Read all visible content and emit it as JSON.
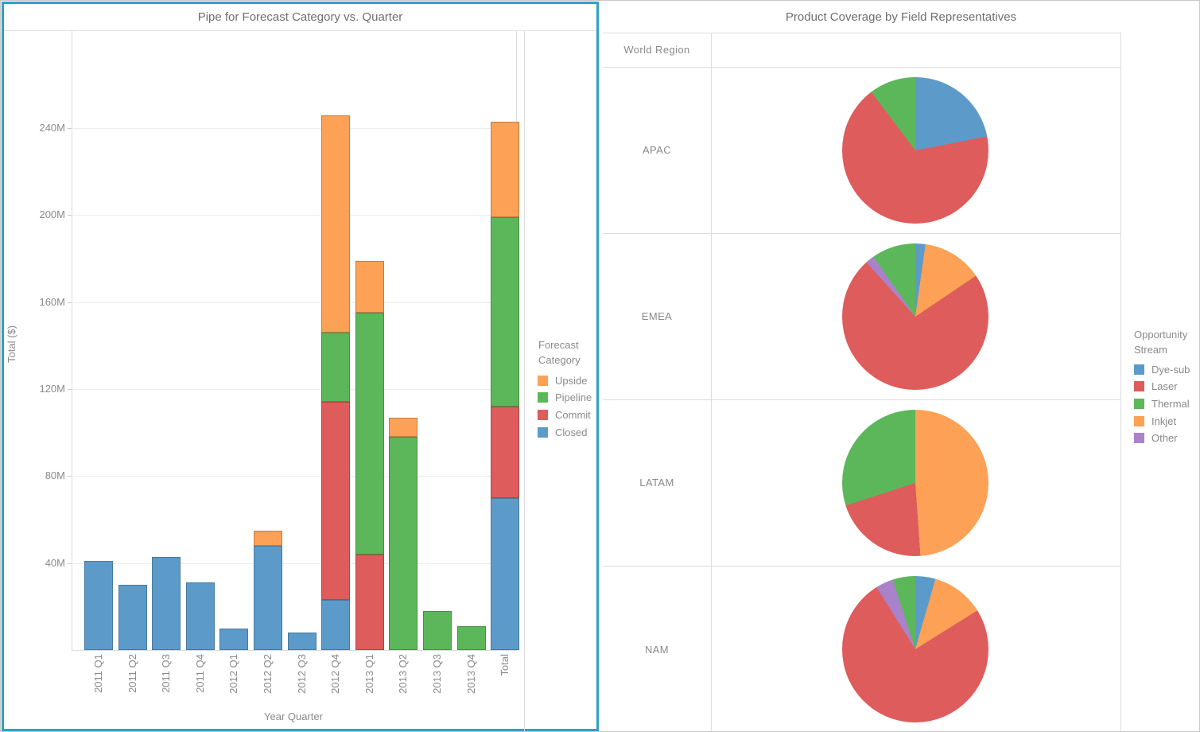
{
  "colors": {
    "accent_border": "#2FA0C9",
    "grid": "#ECECEC",
    "table_line": "#DCDCDC",
    "tick_text": "#8A8A8A",
    "title_text": "#6E6E6E",
    "forecast": {
      "Upside": "#FCA156",
      "Pipeline": "#5CB75A",
      "Commit": "#DE5C5C",
      "Closed": "#5C9BC9"
    },
    "streams": {
      "Dye-sub": "#5C9BC9",
      "Laser": "#DE5C5C",
      "Thermal": "#5CB75A",
      "Inkjet": "#FCA156",
      "Other": "#A982C9"
    }
  },
  "left_sheet": {
    "title": "Pipe for Forecast Category vs. Quarter",
    "y_axis": {
      "title": "Total ($)",
      "tick_values": [
        40,
        80,
        120,
        160,
        200,
        240
      ],
      "tick_labels": [
        "40M",
        "80M",
        "120M",
        "160M",
        "200M",
        "240M"
      ]
    },
    "x_axis": {
      "title": "Year Quarter"
    },
    "legend": {
      "title_lines": [
        "Forecast",
        "Category"
      ],
      "items": [
        "Upside",
        "Pipeline",
        "Commit",
        "Closed"
      ]
    }
  },
  "right_sheet": {
    "title": "Product Coverage by Field Representatives",
    "column_header": "World Region",
    "regions": [
      "APAC",
      "EMEA",
      "LATAM",
      "NAM"
    ],
    "legend": {
      "title_lines": [
        "Opportunity",
        "Stream"
      ],
      "items": [
        "Dye-sub",
        "Laser",
        "Thermal",
        "Inkjet",
        "Other"
      ]
    }
  },
  "chart_data": [
    {
      "type": "bar",
      "stacked": true,
      "title": "Pipe for Forecast Category vs. Quarter",
      "xlabel": "Year Quarter",
      "ylabel": "Total ($)",
      "ylim": [
        0,
        284
      ],
      "yticks_millions": [
        40,
        80,
        120,
        160,
        200,
        240
      ],
      "grid": true,
      "legend_position": "right",
      "categories": [
        "2011 Q1",
        "2011 Q2",
        "2011 Q3",
        "2011 Q4",
        "2012 Q1",
        "2012 Q2",
        "2012 Q3",
        "2012 Q4",
        "2013 Q1",
        "2013 Q2",
        "2013 Q3",
        "2013 Q4",
        "Total"
      ],
      "unit": "M$",
      "series": [
        {
          "name": "Closed",
          "values": [
            41,
            30,
            43,
            31,
            10,
            48,
            8,
            23,
            0,
            0,
            0,
            0,
            70
          ]
        },
        {
          "name": "Commit",
          "values": [
            0,
            0,
            0,
            0,
            0,
            0,
            0,
            91,
            44,
            0,
            0,
            0,
            42
          ]
        },
        {
          "name": "Pipeline",
          "values": [
            0,
            0,
            0,
            0,
            0,
            0,
            0,
            32,
            111,
            98,
            18,
            11,
            87
          ]
        },
        {
          "name": "Upside",
          "values": [
            0,
            0,
            0,
            0,
            0,
            7,
            0,
            100,
            24,
            9,
            0,
            0,
            44
          ]
        }
      ]
    },
    {
      "type": "pie",
      "title": "Product Coverage by Field Representatives",
      "row_header": "World Region",
      "legend_title": "Opportunity Stream",
      "note": "slices listed clockwise from 12 o'clock, spans in degrees",
      "regions": [
        {
          "name": "APAC",
          "slices": [
            {
              "stream": "Dye-sub",
              "deg": 79
            },
            {
              "stream": "Laser",
              "deg": 244
            },
            {
              "stream": "Thermal",
              "deg": 37
            }
          ]
        },
        {
          "name": "EMEA",
          "slices": [
            {
              "stream": "Dye-sub",
              "deg": 8
            },
            {
              "stream": "Inkjet",
              "deg": 48
            },
            {
              "stream": "Laser",
              "deg": 262
            },
            {
              "stream": "Other",
              "deg": 7
            },
            {
              "stream": "Thermal",
              "deg": 35
            }
          ]
        },
        {
          "name": "LATAM",
          "slices": [
            {
              "stream": "Inkjet",
              "deg": 176
            },
            {
              "stream": "Laser",
              "deg": 76
            },
            {
              "stream": "Thermal",
              "deg": 108
            }
          ]
        },
        {
          "name": "NAM",
          "slices": [
            {
              "stream": "Dye-sub",
              "deg": 16
            },
            {
              "stream": "Inkjet",
              "deg": 42
            },
            {
              "stream": "Laser",
              "deg": 270
            },
            {
              "stream": "Other",
              "deg": 14
            },
            {
              "stream": "Thermal",
              "deg": 18
            }
          ]
        }
      ]
    }
  ]
}
